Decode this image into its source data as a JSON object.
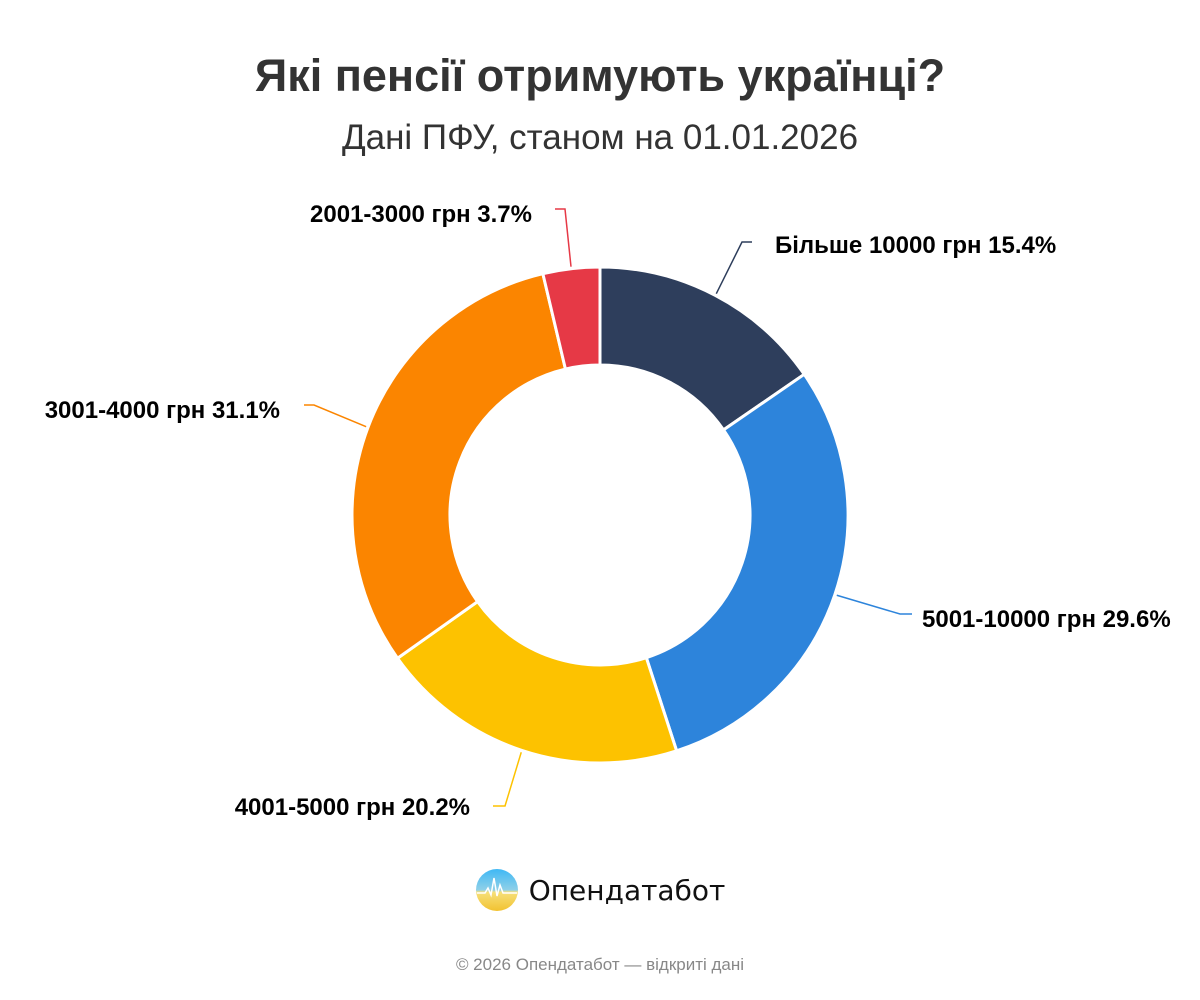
{
  "title": "Які пенсії отримують українці?",
  "subtitle": "Дані ПФУ, станом на 01.01.2026",
  "chart_data": {
    "type": "pie",
    "donut": true,
    "title": "Які пенсії отримують українці?",
    "subtitle": "Дані ПФУ, станом на 01.01.2026",
    "unit": "%",
    "categories": [
      "Більше 10000 грн",
      "5001-10000 грн",
      "4001-5000 грн",
      "3001-4000 грн",
      "2001-3000 грн"
    ],
    "values": [
      15.4,
      29.6,
      20.2,
      31.1,
      3.7
    ],
    "labels": [
      "Більше 10000 грн 15.4%",
      "5001-10000 грн 29.6%",
      "4001-5000 грн 20.2%",
      "3001-4000 грн 31.1%",
      "2001-3000 грн 3.7%"
    ],
    "colors": [
      "#2e3e5c",
      "#2d84db",
      "#fdc200",
      "#fb8500",
      "#e63946"
    ],
    "start": "top",
    "direction": "clockwise",
    "legend": "none"
  },
  "brand": {
    "name": "Опендатабот",
    "logo_icon": "opendatabot-logo-icon"
  },
  "footer": "© 2026 Опендатабот — відкриті дані"
}
